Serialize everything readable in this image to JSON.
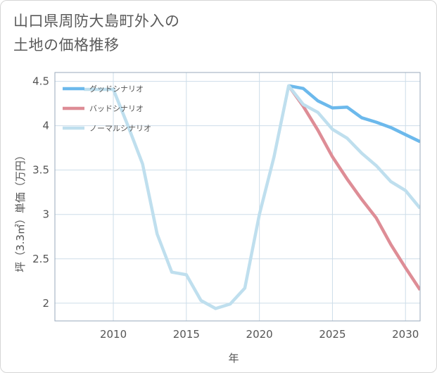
{
  "header": {
    "title_line1": "山口県周防大島町外入の",
    "title_line2": "土地の価格推移"
  },
  "colors": {
    "good": "#6cb9ec",
    "bad": "#de8d96",
    "normal": "#bfdfee",
    "grid": "#cddde9",
    "plot_border": "#9aaabb"
  },
  "chart_data": {
    "type": "line",
    "title": "山口県周防大島町外入の土地の価格推移",
    "xlabel": "年",
    "ylabel": "坪（3.3㎡）単価（万円）",
    "xlim": [
      2006,
      2031
    ],
    "ylim": [
      1.8,
      4.6
    ],
    "xticks": [
      2010,
      2015,
      2020,
      2025,
      2030
    ],
    "yticks": [
      2,
      2.5,
      3,
      3.5,
      4,
      4.5
    ],
    "ytick_labels": [
      "2",
      "2.5",
      "3",
      "3.5",
      "4",
      "4.5"
    ],
    "grid": true,
    "legend_position": "top-left",
    "series": [
      {
        "name": "グッドシナリオ",
        "color": "#6cb9ec",
        "x": [
          2022,
          2023,
          2024,
          2025,
          2026,
          2027,
          2028,
          2029,
          2030,
          2031
        ],
        "y": [
          4.45,
          4.42,
          4.28,
          4.2,
          4.21,
          4.09,
          4.04,
          3.98,
          3.9,
          3.82
        ]
      },
      {
        "name": "バッドシナリオ",
        "color": "#de8d96",
        "x": [
          2022,
          2023,
          2024,
          2025,
          2026,
          2027,
          2028,
          2029,
          2030,
          2031
        ],
        "y": [
          4.45,
          4.22,
          3.95,
          3.65,
          3.4,
          3.17,
          2.96,
          2.66,
          2.4,
          2.15
        ]
      },
      {
        "name": "ノーマルシナリオ",
        "color": "#bfdfee",
        "x": [
          2008,
          2009,
          2010,
          2011,
          2012,
          2013,
          2014,
          2015,
          2016,
          2017,
          2018,
          2019,
          2020,
          2021,
          2022,
          2023,
          2024,
          2025,
          2026,
          2027,
          2028,
          2029,
          2030,
          2031
        ],
        "y": [
          4.41,
          4.41,
          4.41,
          4.0,
          3.57,
          2.78,
          2.35,
          2.32,
          2.03,
          1.94,
          1.99,
          2.17,
          3.0,
          3.65,
          4.45,
          4.24,
          4.15,
          3.96,
          3.86,
          3.69,
          3.55,
          3.37,
          3.27,
          3.07
        ]
      }
    ]
  }
}
